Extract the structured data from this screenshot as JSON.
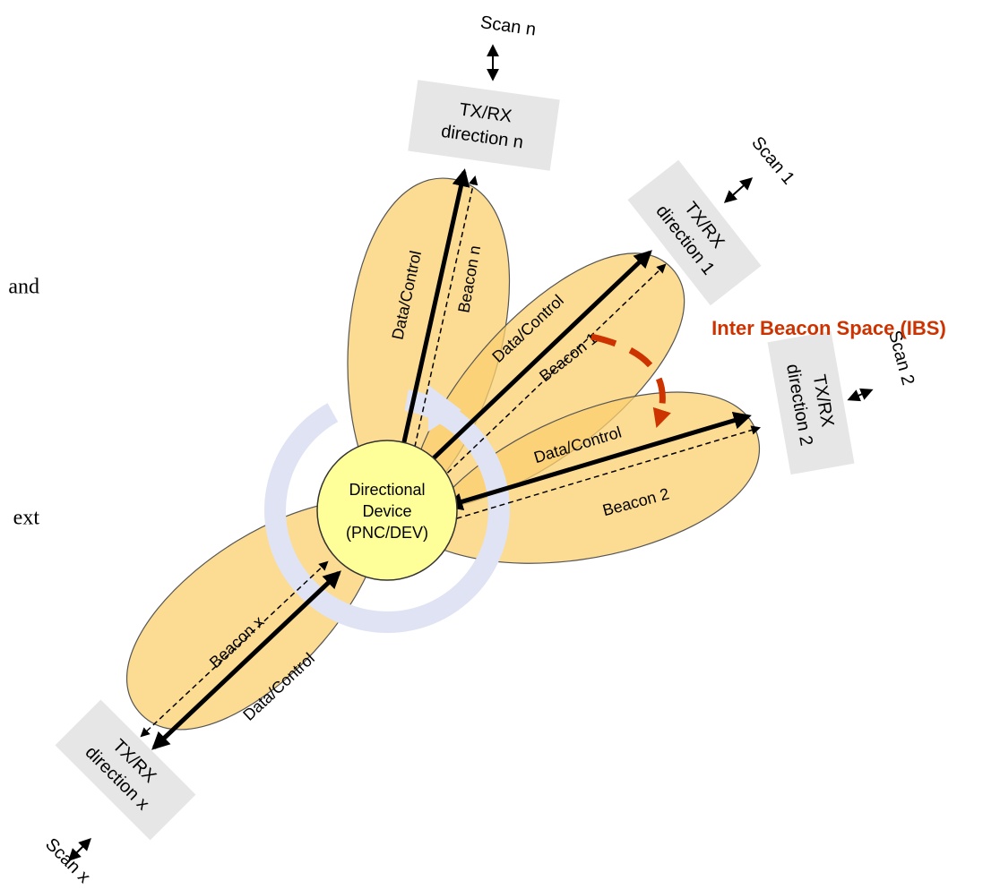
{
  "left_fragments": [
    "and",
    "ext"
  ],
  "ibs_label": "Inter Beacon Space (IBS)",
  "center": {
    "lines": [
      "Directional",
      "Device",
      "(PNC/DEV)"
    ]
  },
  "directions": [
    {
      "box": [
        "TX/RX",
        "direction n"
      ],
      "scan": "Scan n",
      "data_label": "Data/Control",
      "beacon_label": "Beacon n"
    },
    {
      "box": [
        "TX/RX",
        "direction 1"
      ],
      "scan": "Scan 1",
      "data_label": "Data/Control",
      "beacon_label": "Beacon 1"
    },
    {
      "box": [
        "TX/RX",
        "direction 2"
      ],
      "scan": "Scan 2",
      "data_label": "Data/Control",
      "beacon_label": "Beacon 2"
    },
    {
      "box": [
        "TX/RX",
        "direction x"
      ],
      "scan": "Scan x",
      "data_label": "Data/Control",
      "beacon_label": "Beacon x"
    }
  ]
}
